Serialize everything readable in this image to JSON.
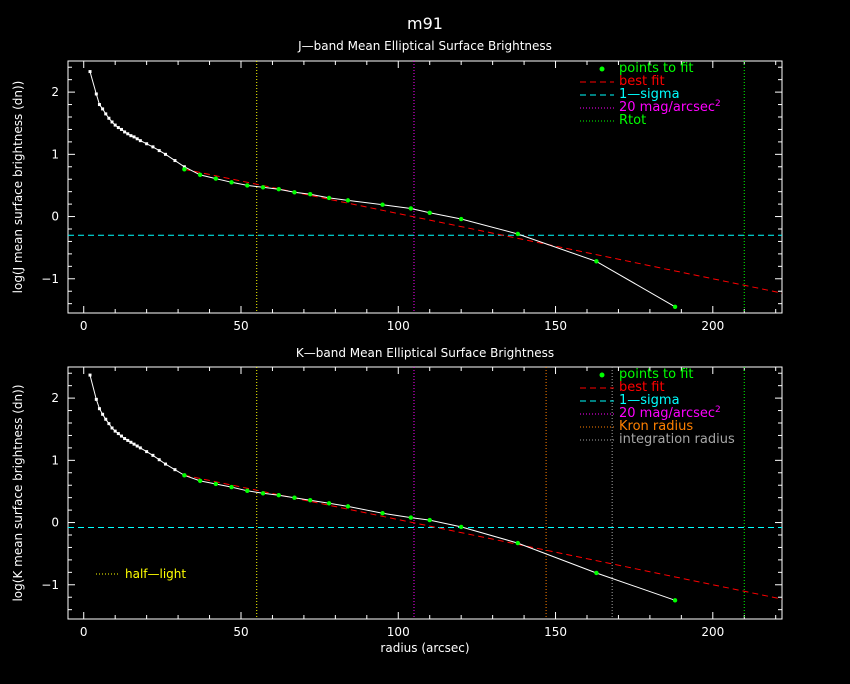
{
  "page_title": "m91",
  "colors": {
    "background": "#000000",
    "foreground": "#ffffff",
    "points": "#00ff00",
    "best_fit": "#ff0000",
    "sigma": "#00ffff",
    "mag20": "#ff00ff",
    "rtot": "#00ff00",
    "half_light": "#ffff00",
    "kron": "#ff8000",
    "integration": "#a6a6a6"
  },
  "chart_data": [
    {
      "type": "line",
      "title": "J—band Mean Elliptical Surface Brightness",
      "xlabel": "",
      "ylabel": "log(J mean surface brightness (dn))",
      "xlim": [
        -5,
        222
      ],
      "ylim": [
        -1.55,
        2.5
      ],
      "xticks": [
        0,
        50,
        100,
        150,
        200
      ],
      "yticks": [
        -1,
        0,
        1,
        2
      ],
      "ytick_labels": [
        "−1",
        "0",
        "1",
        "2"
      ],
      "profile": {
        "x": [
          2,
          4,
          5,
          6,
          7,
          8,
          9,
          10,
          11,
          12,
          13,
          14,
          15,
          16,
          17,
          18,
          20,
          22,
          24,
          26,
          29,
          32
        ],
        "y": [
          2.33,
          1.97,
          1.8,
          1.73,
          1.65,
          1.58,
          1.52,
          1.47,
          1.43,
          1.4,
          1.36,
          1.33,
          1.3,
          1.28,
          1.25,
          1.22,
          1.17,
          1.12,
          1.06,
          1.0,
          0.9,
          0.8
        ]
      },
      "fit_points": {
        "x": [
          32,
          37,
          42,
          47,
          52,
          57,
          62,
          67,
          72,
          78,
          84,
          95,
          104,
          110,
          120,
          138,
          163,
          188
        ],
        "y": [
          0.76,
          0.67,
          0.61,
          0.55,
          0.5,
          0.47,
          0.44,
          0.39,
          0.36,
          0.3,
          0.26,
          0.19,
          0.13,
          0.06,
          -0.04,
          -0.28,
          -0.72,
          -1.45
        ]
      },
      "best_fit": {
        "x": [
          32,
          222
        ],
        "y": [
          0.76,
          -1.23
        ]
      },
      "one_sigma": -0.3,
      "mag20_radius": 105,
      "rtot_radius": 210,
      "half_light_radius": 55,
      "legend": [
        {
          "label": "points to fit",
          "color": "#00ff00",
          "style": "dot"
        },
        {
          "label": "best fit",
          "color": "#ff0000",
          "style": "dash"
        },
        {
          "label": "1—sigma",
          "color": "#00ffff",
          "style": "dash"
        },
        {
          "label": "20 mag/arcsec",
          "sup": "2",
          "color": "#ff00ff",
          "style": "dot-line"
        },
        {
          "label": "Rtot",
          "color": "#00ff00",
          "style": "dot-line"
        }
      ],
      "legend_position": "top-right"
    },
    {
      "type": "line",
      "title": "K—band Mean Elliptical Surface Brightness",
      "xlabel": "radius (arcsec)",
      "ylabel": "log(K mean surface brightness (dn))",
      "xlim": [
        -5,
        222
      ],
      "ylim": [
        -1.55,
        2.5
      ],
      "xticks": [
        0,
        50,
        100,
        150,
        200
      ],
      "yticks": [
        -1,
        0,
        1,
        2
      ],
      "ytick_labels": [
        "−1",
        "0",
        "1",
        "2"
      ],
      "profile": {
        "x": [
          2,
          4,
          5,
          6,
          7,
          8,
          9,
          10,
          11,
          12,
          13,
          14,
          15,
          16,
          17,
          18,
          20,
          22,
          24,
          26,
          29,
          32
        ],
        "y": [
          2.37,
          1.98,
          1.83,
          1.74,
          1.66,
          1.59,
          1.52,
          1.47,
          1.43,
          1.39,
          1.35,
          1.32,
          1.29,
          1.26,
          1.23,
          1.2,
          1.14,
          1.08,
          1.01,
          0.94,
          0.85,
          0.76
        ]
      },
      "fit_points": {
        "x": [
          32,
          37,
          42,
          47,
          52,
          57,
          62,
          67,
          72,
          78,
          84,
          95,
          104,
          110,
          120,
          138,
          163,
          188
        ],
        "y": [
          0.76,
          0.67,
          0.62,
          0.57,
          0.51,
          0.47,
          0.44,
          0.4,
          0.36,
          0.31,
          0.26,
          0.15,
          0.08,
          0.04,
          -0.07,
          -0.33,
          -0.81,
          -1.25
        ]
      },
      "best_fit": {
        "x": [
          32,
          222
        ],
        "y": [
          0.76,
          -1.23
        ]
      },
      "one_sigma": -0.08,
      "mag20_radius": 105,
      "kron_radius": 147,
      "integration_radius": 168,
      "rtot_radius": 210,
      "half_light_radius": 55,
      "half_light_label": "half—light",
      "legend": [
        {
          "label": "points to fit",
          "color": "#00ff00",
          "style": "dot"
        },
        {
          "label": "best fit",
          "color": "#ff0000",
          "style": "dash"
        },
        {
          "label": "1—sigma",
          "color": "#00ffff",
          "style": "dash"
        },
        {
          "label": "20 mag/arcsec",
          "sup": "2",
          "color": "#ff00ff",
          "style": "dot-line"
        },
        {
          "label": "Kron radius",
          "color": "#ff8000",
          "style": "dot-line"
        },
        {
          "label": "integration radius",
          "color": "#a6a6a6",
          "style": "dot-line"
        }
      ],
      "legend_position": "top-right"
    }
  ]
}
